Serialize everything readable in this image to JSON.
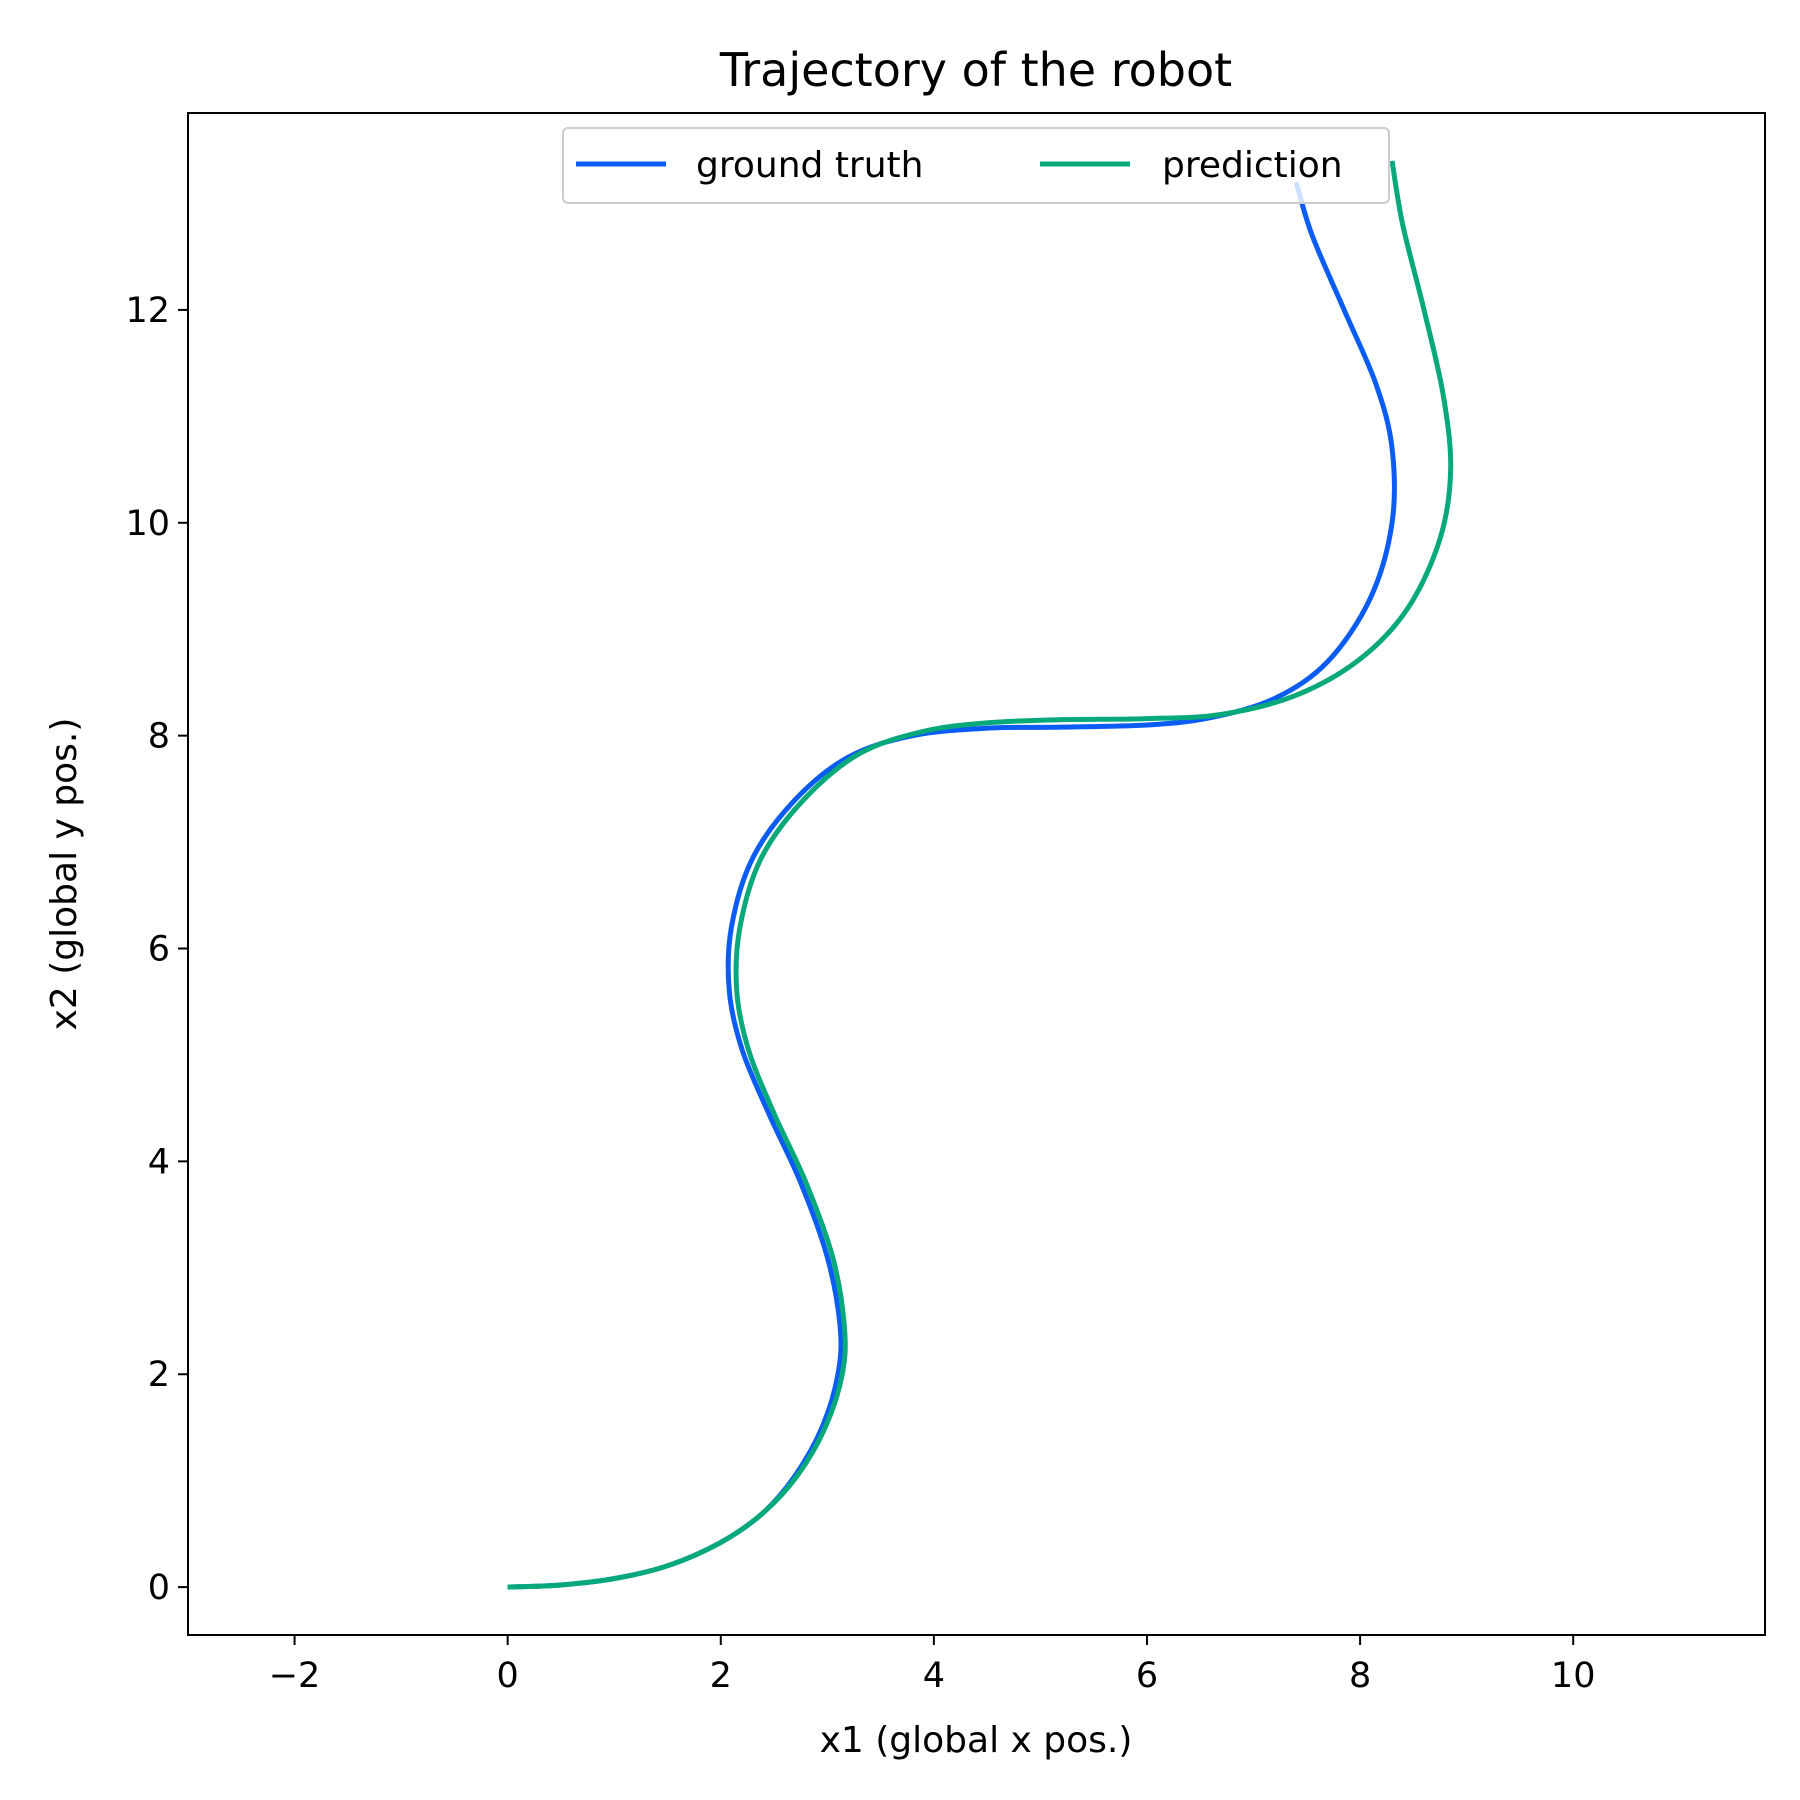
{
  "chart_data": {
    "type": "line",
    "title": "Trajectory of the robot",
    "xlabel": "x1 (global x pos.)",
    "ylabel": "x2 (global y pos.)",
    "xlim": [
      -3.0,
      11.8
    ],
    "ylim": [
      -0.45,
      13.85
    ],
    "xticks": [
      -2,
      0,
      2,
      4,
      6,
      8,
      10
    ],
    "xtick_labels": [
      "−2",
      "0",
      "2",
      "4",
      "6",
      "8",
      "10"
    ],
    "yticks": [
      0,
      2,
      4,
      6,
      8,
      10,
      12
    ],
    "ytick_labels": [
      "0",
      "2",
      "4",
      "6",
      "8",
      "10",
      "12"
    ],
    "grid": false,
    "legend": {
      "placement": "upper-center",
      "columns": 2
    },
    "series": [
      {
        "name": "ground truth",
        "color": "#0a5cf5",
        "points": [
          [
            0.0,
            0.0
          ],
          [
            0.5,
            0.02
          ],
          [
            1.0,
            0.08
          ],
          [
            1.5,
            0.2
          ],
          [
            2.0,
            0.42
          ],
          [
            2.4,
            0.7
          ],
          [
            2.7,
            1.05
          ],
          [
            2.95,
            1.5
          ],
          [
            3.1,
            2.0
          ],
          [
            3.12,
            2.45
          ],
          [
            3.0,
            3.1
          ],
          [
            2.75,
            3.8
          ],
          [
            2.45,
            4.45
          ],
          [
            2.2,
            5.05
          ],
          [
            2.08,
            5.6
          ],
          [
            2.1,
            6.2
          ],
          [
            2.3,
            6.85
          ],
          [
            2.7,
            7.4
          ],
          [
            3.2,
            7.8
          ],
          [
            3.8,
            8.0
          ],
          [
            4.5,
            8.07
          ],
          [
            5.2,
            8.08
          ],
          [
            6.0,
            8.1
          ],
          [
            6.6,
            8.17
          ],
          [
            7.2,
            8.35
          ],
          [
            7.7,
            8.7
          ],
          [
            8.1,
            9.3
          ],
          [
            8.3,
            10.0
          ],
          [
            8.3,
            10.7
          ],
          [
            8.15,
            11.3
          ],
          [
            7.85,
            12.0
          ],
          [
            7.55,
            12.7
          ],
          [
            7.4,
            13.2
          ]
        ]
      },
      {
        "name": "prediction",
        "color": "#07a97a",
        "points": [
          [
            0.0,
            0.0
          ],
          [
            0.5,
            0.02
          ],
          [
            1.0,
            0.08
          ],
          [
            1.5,
            0.2
          ],
          [
            2.0,
            0.42
          ],
          [
            2.4,
            0.7
          ],
          [
            2.72,
            1.05
          ],
          [
            2.98,
            1.5
          ],
          [
            3.14,
            2.0
          ],
          [
            3.16,
            2.45
          ],
          [
            3.05,
            3.1
          ],
          [
            2.8,
            3.8
          ],
          [
            2.5,
            4.45
          ],
          [
            2.26,
            5.05
          ],
          [
            2.15,
            5.6
          ],
          [
            2.18,
            6.2
          ],
          [
            2.38,
            6.85
          ],
          [
            2.78,
            7.4
          ],
          [
            3.3,
            7.83
          ],
          [
            3.9,
            8.04
          ],
          [
            4.5,
            8.12
          ],
          [
            5.2,
            8.15
          ],
          [
            6.0,
            8.16
          ],
          [
            6.7,
            8.2
          ],
          [
            7.4,
            8.38
          ],
          [
            8.0,
            8.72
          ],
          [
            8.45,
            9.2
          ],
          [
            8.75,
            9.85
          ],
          [
            8.85,
            10.5
          ],
          [
            8.78,
            11.2
          ],
          [
            8.6,
            12.0
          ],
          [
            8.4,
            12.8
          ],
          [
            8.3,
            13.4
          ]
        ]
      }
    ]
  }
}
